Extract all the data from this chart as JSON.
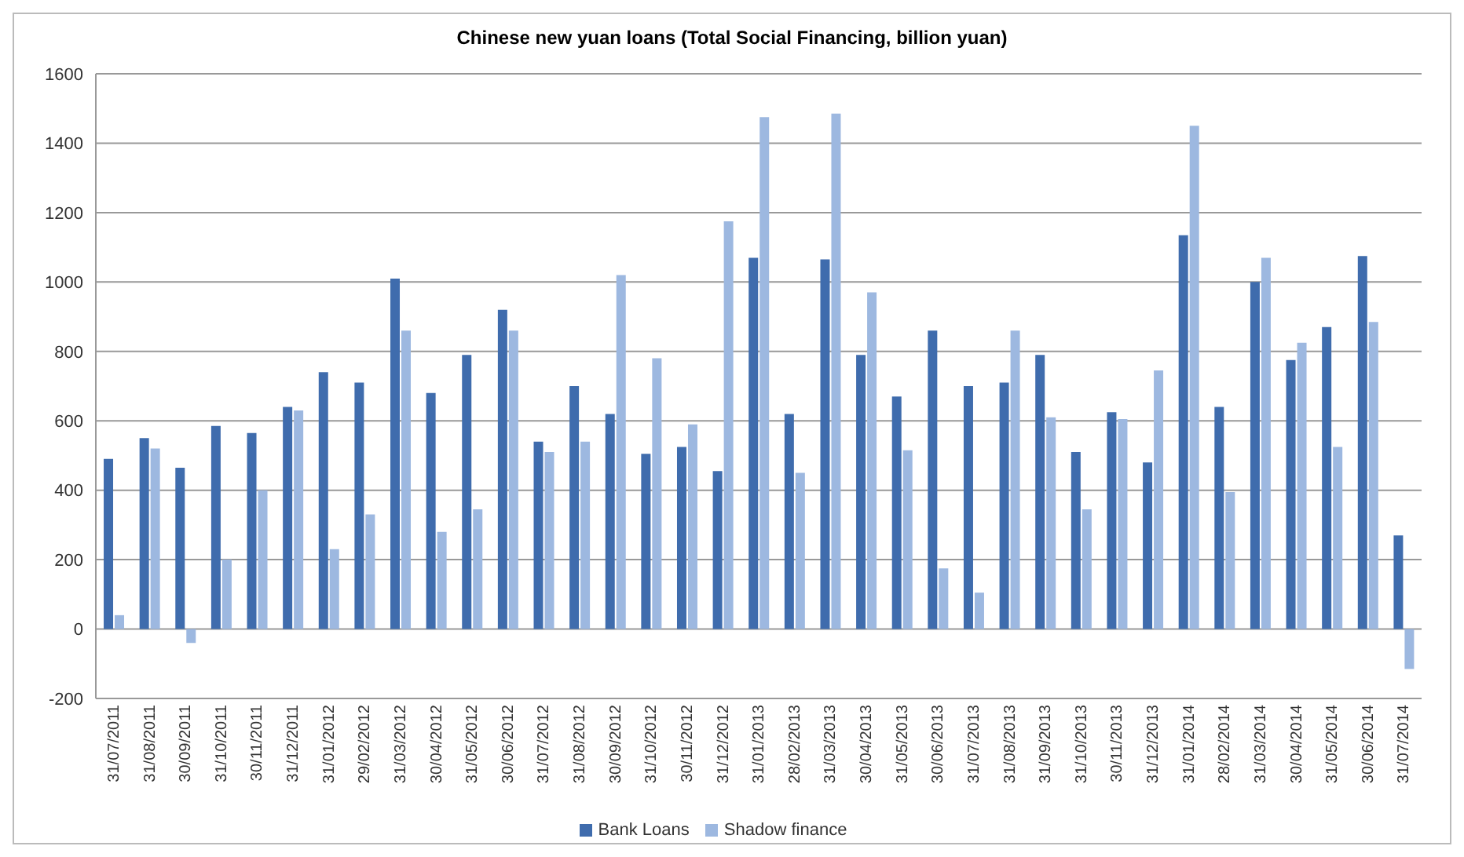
{
  "chart_data": {
    "type": "bar",
    "title": "Chinese new yuan loans (Total Social Financing, billion yuan)",
    "categories": [
      "31/07/2011",
      "31/08/2011",
      "30/09/2011",
      "31/10/2011",
      "30/11/2011",
      "31/12/2011",
      "31/01/2012",
      "29/02/2012",
      "31/03/2012",
      "30/04/2012",
      "31/05/2012",
      "30/06/2012",
      "31/07/2012",
      "31/08/2012",
      "30/09/2012",
      "31/10/2012",
      "30/11/2012",
      "31/12/2012",
      "31/01/2013",
      "28/02/2013",
      "31/03/2013",
      "30/04/2013",
      "31/05/2013",
      "30/06/2013",
      "31/07/2013",
      "31/08/2013",
      "31/09/2013",
      "31/10/2013",
      "30/11/2013",
      "31/12/2013",
      "31/01/2014",
      "28/02/2014",
      "31/03/2014",
      "30/04/2014",
      "31/05/2014",
      "30/06/2014",
      "31/07/2014"
    ],
    "series": [
      {
        "name": "Bank Loans",
        "color": "#3f6cad",
        "values": [
          490,
          550,
          465,
          585,
          565,
          640,
          740,
          710,
          1010,
          680,
          790,
          920,
          540,
          700,
          620,
          505,
          525,
          455,
          1070,
          620,
          1065,
          790,
          670,
          860,
          700,
          710,
          790,
          510,
          625,
          480,
          1135,
          640,
          1000,
          775,
          870,
          1075,
          270
        ]
      },
      {
        "name": "Shadow finance",
        "color": "#9db8e0",
        "values": [
          40,
          520,
          -40,
          200,
          400,
          630,
          230,
          330,
          860,
          280,
          345,
          860,
          510,
          540,
          1020,
          780,
          590,
          1175,
          1475,
          450,
          1485,
          970,
          515,
          175,
          105,
          860,
          610,
          345,
          605,
          745,
          1450,
          395,
          1070,
          825,
          525,
          885,
          -115
        ]
      }
    ],
    "ylim": [
      -200,
      1600
    ],
    "yticks": [
      -200,
      0,
      200,
      400,
      600,
      800,
      1000,
      1200,
      1400,
      1600
    ],
    "grid": "y",
    "legend": "bottom"
  }
}
